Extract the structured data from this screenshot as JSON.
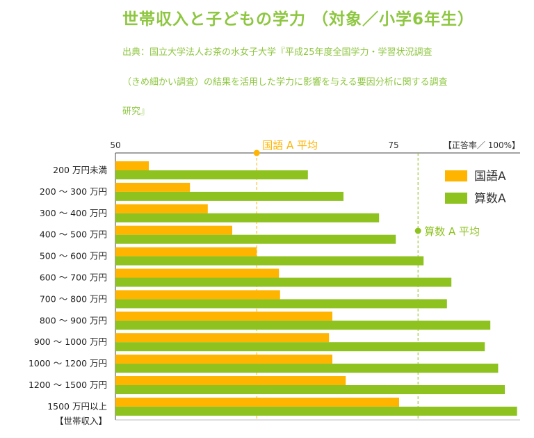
{
  "title": "世帯収入と子どもの学力 （対象／小学6年生）",
  "source_lines": [
    "出典：国立大学法人お茶の水女子大学『平成25年度全国学力・学習状況調査",
    "（きめ細かい調査）の結果を活用した学力に影響を与える要因分析に関する調査",
    "研究』"
  ],
  "chart_data": {
    "type": "bar",
    "orientation": "horizontal",
    "categories": [
      "200 万円未満",
      "200 ～ 300 万円",
      "300 ～ 400 万円",
      "400 ～ 500 万円",
      "500 ～ 600 万円",
      "600 ～ 700 万円",
      "700 ～ 800 万円",
      "800 ～ 900 万円",
      "900 ～ 1000 万円",
      "1000 ～ 1200 万円",
      "1200 ～ 1500 万円",
      "1500 万円以上"
    ],
    "series": [
      {
        "name": "国語A",
        "color": "#ffb400",
        "values": [
          53.0,
          56.7,
          58.3,
          60.5,
          62.7,
          64.7,
          64.8,
          69.5,
          69.2,
          69.5,
          70.7,
          75.5
        ]
      },
      {
        "name": "算数A",
        "color": "#8dc21f",
        "values": [
          67.3,
          70.5,
          73.7,
          75.2,
          77.7,
          80.2,
          79.8,
          83.7,
          83.2,
          84.4,
          85.0,
          86.1
        ]
      }
    ],
    "xlim": [
      50,
      86
    ],
    "x_ticks": [
      {
        "value": 50,
        "label": "50"
      },
      {
        "value": 75,
        "label": "75"
      }
    ],
    "x_unit_label": "【正答率／ 100%】",
    "y_axis_label": "【世帯収入】",
    "reference_lines": [
      {
        "label": "国語 A 平均",
        "value": 62.7,
        "color": "#ffb400"
      },
      {
        "label": "算数 A 平均",
        "value": 77.2,
        "color": "#8dc21f"
      }
    ],
    "legend_position": "top-right",
    "grid": false
  }
}
